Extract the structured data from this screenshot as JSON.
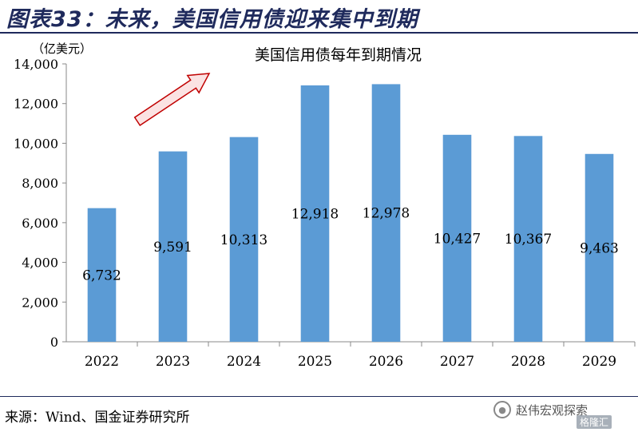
{
  "header": {
    "figure_title": "图表33：未来，美国信用债迎来集中到期"
  },
  "source": {
    "text": "来源：Wind、国金证券研究所"
  },
  "watermark": {
    "text": "赵伟宏观探索",
    "logo_text": "格隆汇"
  },
  "colors": {
    "bar": "#5b9bd5",
    "title": "#1f2a5c",
    "arrow_stroke": "#c00000",
    "arrow_fill": "#fbe3e3"
  },
  "chart_data": {
    "type": "bar",
    "title": "美国信用债每年到期情况",
    "ylabel": "（亿美元）",
    "xlabel": "",
    "categories": [
      "2022",
      "2023",
      "2024",
      "2025",
      "2026",
      "2027",
      "2028",
      "2029"
    ],
    "values": [
      6732,
      9591,
      10313,
      12918,
      12978,
      10427,
      10367,
      9463
    ],
    "data_labels": [
      "6,732",
      "9,591",
      "10,313",
      "12,918",
      "12,978",
      "10,427",
      "10,367",
      "9,463"
    ],
    "ylim": [
      0,
      14000
    ],
    "yticks": [
      0,
      2000,
      4000,
      6000,
      8000,
      10000,
      12000,
      14000
    ],
    "ytick_labels": [
      "0",
      "2,000",
      "4,000",
      "6,000",
      "8,000",
      "10,000",
      "12,000",
      "14,000"
    ],
    "grid": false,
    "legend": "none",
    "annotations": [
      {
        "type": "arrow",
        "direction": "up-right"
      }
    ]
  }
}
